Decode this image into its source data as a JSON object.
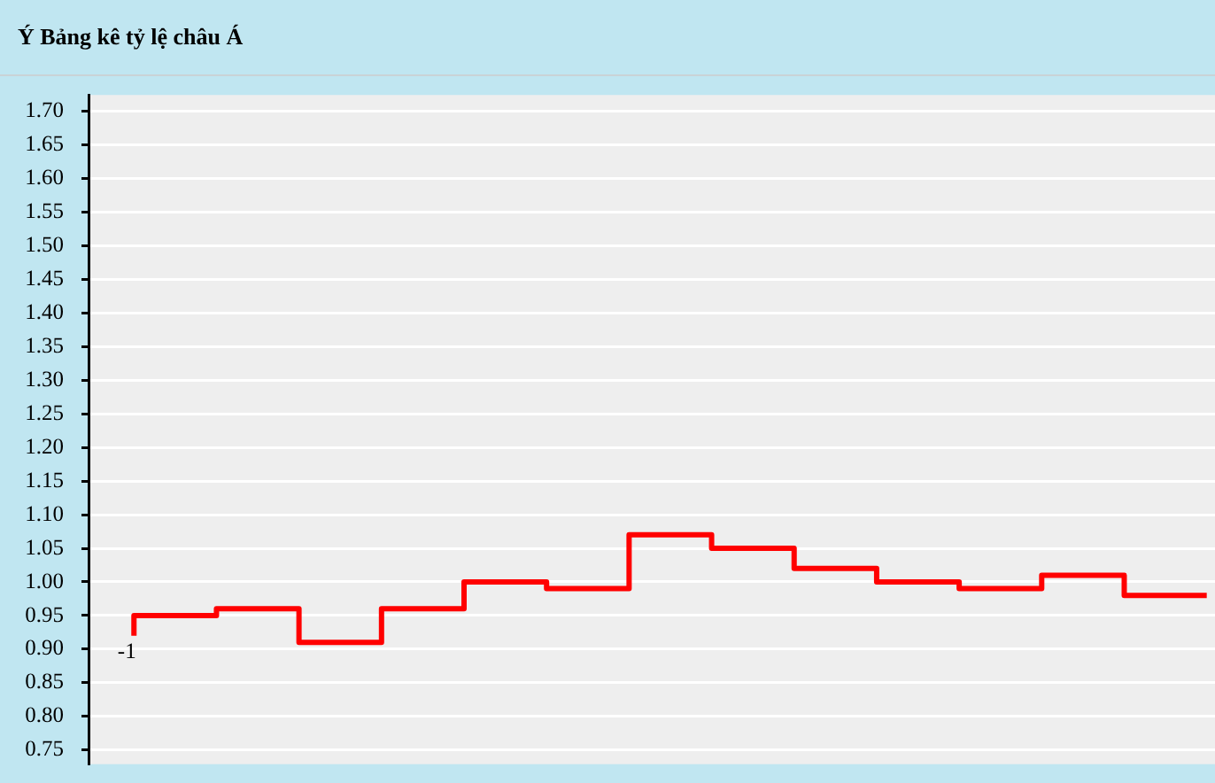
{
  "chart_data": {
    "type": "step",
    "title": "Ý Bảng kê tỷ lệ châu Á",
    "categories": [
      null,
      null,
      null,
      null,
      null,
      null,
      null,
      null,
      null,
      null,
      null,
      null,
      null,
      null
    ],
    "series": [
      {
        "color": "#ff0000",
        "values": [
          0.92,
          0.95,
          0.96,
          0.91,
          0.96,
          1.0,
          0.99,
          1.07,
          1.05,
          1.02,
          1.0,
          0.99,
          1.01,
          0.98
        ]
      }
    ],
    "ylim": [
      0.729,
      1.724
    ],
    "yticks": [
      0.75,
      {
        "value": 0.8,
        "label": "0.80"
      },
      0.85,
      {
        "value": 0.9,
        "label": "0.90"
      },
      0.95,
      {
        "value": 1,
        "label": "1.00"
      },
      1.05,
      {
        "value": 1.1,
        "label": "1.10"
      },
      1.15,
      {
        "value": 1.2,
        "label": "1.20"
      },
      1.25,
      {
        "value": 1.3,
        "label": "1.30"
      },
      1.35,
      {
        "value": 1.4,
        "label": "1.40"
      },
      1.45,
      {
        "value": 1.5,
        "label": "1.50"
      },
      1.55,
      {
        "value": 1.6,
        "label": "1.60"
      },
      1.65,
      {
        "value": 1.7,
        "label": "1.70"
      }
    ],
    "grid": "y",
    "legend": false,
    "tick_labels": "y",
    "annotations": [
      "-1"
    ]
  }
}
